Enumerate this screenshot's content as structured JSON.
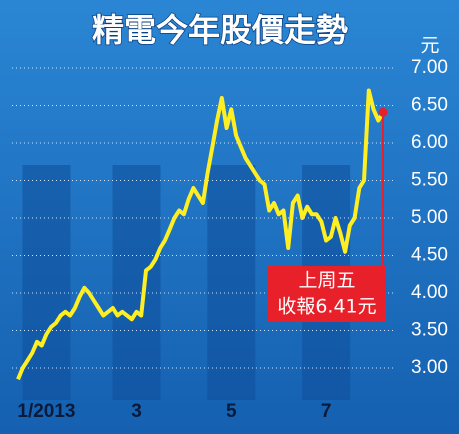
{
  "chart_data": {
    "type": "line",
    "title": "精電今年股價走勢",
    "y_unit": "元",
    "categories": [
      null,
      null,
      null,
      null,
      null,
      null,
      "1/2013",
      null,
      null,
      null,
      null,
      null,
      null,
      null,
      null,
      null,
      null,
      null,
      null,
      null,
      null,
      null,
      null,
      null,
      null,
      "3",
      null,
      null,
      null,
      null,
      null,
      null,
      null,
      null,
      null,
      null,
      null,
      null,
      null,
      null,
      null,
      null,
      null,
      null,
      null,
      "5",
      null,
      null,
      null,
      null,
      null,
      null,
      null,
      null,
      null,
      null,
      null,
      null,
      null,
      null,
      null,
      null,
      null,
      null,
      null,
      "7",
      null,
      null,
      null,
      null,
      null,
      null,
      null,
      null,
      null,
      null,
      null,
      null
    ],
    "series": [
      {
        "name": "精電",
        "color": "#ffee22",
        "values": [
          2.85,
          3.0,
          3.1,
          3.2,
          3.35,
          3.3,
          3.45,
          3.55,
          3.6,
          3.7,
          3.75,
          3.7,
          3.8,
          3.95,
          4.07,
          4.0,
          3.9,
          3.8,
          3.7,
          3.75,
          3.8,
          3.7,
          3.75,
          3.7,
          3.65,
          3.75,
          3.7,
          4.3,
          4.35,
          4.45,
          4.6,
          4.7,
          4.85,
          5.0,
          5.1,
          5.05,
          5.25,
          5.4,
          5.3,
          5.2,
          5.6,
          5.95,
          6.3,
          6.6,
          6.2,
          6.45,
          6.1,
          5.95,
          5.8,
          5.7,
          5.6,
          5.5,
          5.45,
          5.1,
          5.2,
          5.05,
          5.1,
          4.6,
          5.2,
          5.3,
          5.0,
          5.15,
          5.05,
          5.05,
          4.95,
          4.7,
          4.75,
          5.0,
          4.8,
          4.55,
          4.9,
          5.0,
          5.4,
          5.5,
          6.7,
          6.45,
          6.3,
          6.41
        ]
      }
    ],
    "ylim": [
      2.8,
      7.2
    ],
    "yticks": [
      {
        "value": 3,
        "label": "3.00"
      },
      {
        "value": 3.5,
        "label": "3.50"
      },
      {
        "value": 4,
        "label": "4.00"
      },
      {
        "value": 4.5,
        "label": "4.50"
      },
      {
        "value": 5,
        "label": "5.00"
      },
      {
        "value": 5.5,
        "label": "5.50"
      },
      {
        "value": 6,
        "label": "6.00"
      },
      {
        "value": 6.5,
        "label": "6.50"
      },
      {
        "value": 7,
        "label": "7.00"
      }
    ],
    "grid": true,
    "annotation": {
      "lines": [
        "上周五",
        "收報6.41元"
      ],
      "color": "#e8202a"
    }
  }
}
